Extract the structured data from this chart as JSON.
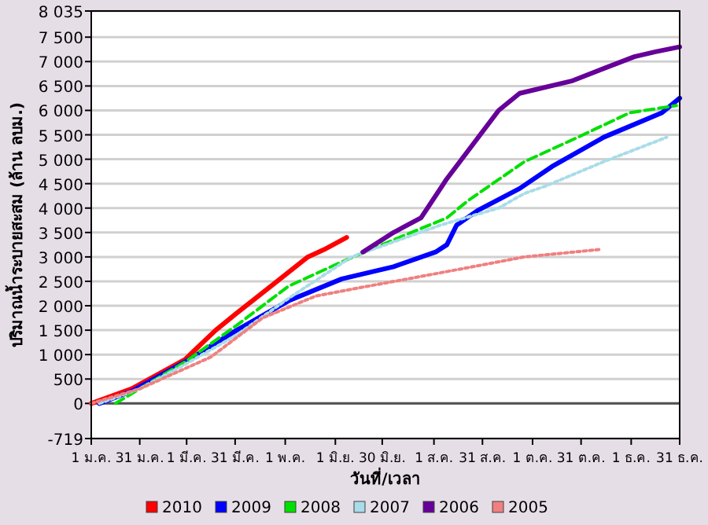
{
  "chart_data": {
    "type": "line",
    "xlabel": "วันที่/เวลา",
    "ylabel": "ปริมาณน้ำระบายสะสม (ล้าน ลบม.)",
    "xlim": [
      "--01-01",
      "--12-31"
    ],
    "xticks": [
      {
        "value": "--01-01",
        "label": "1 ม.ค."
      },
      {
        "value": "--01-31",
        "label": "31 ม.ค."
      },
      {
        "value": "--03-01",
        "label": "1 มี.ค."
      },
      {
        "value": "--03-31",
        "label": "31 มี.ค."
      },
      {
        "value": "--05-01",
        "label": "1 พ.ค."
      },
      {
        "value": "--06-01",
        "label": "1 มิ.ย."
      },
      {
        "value": "--06-30",
        "label": "30 มิ.ย."
      },
      {
        "value": "--08-01",
        "label": "1 ส.ค."
      },
      {
        "value": "--08-31",
        "label": "31 ส.ค."
      },
      {
        "value": "--10-01",
        "label": "1 ต.ค."
      },
      {
        "value": "--10-31",
        "label": "31 ต.ค."
      },
      {
        "value": "--12-01",
        "label": "1 ธ.ค."
      },
      {
        "value": "--12-31",
        "label": "31 ธ.ค."
      }
    ],
    "ylim": [
      -719,
      8035
    ],
    "yticks": [
      {
        "value": -719,
        "label": "-719"
      },
      0,
      500,
      {
        "value": 1000,
        "label": "1 000"
      },
      {
        "value": 1500,
        "label": "1 500"
      },
      {
        "value": 2000,
        "label": "2 000"
      },
      {
        "value": 2500,
        "label": "2 500"
      },
      {
        "value": 3000,
        "label": "3 000"
      },
      {
        "value": 3500,
        "label": "3 500"
      },
      {
        "value": 4000,
        "label": "4 000"
      },
      {
        "value": 4500,
        "label": "4 500"
      },
      {
        "value": 5000,
        "label": "5 000"
      },
      {
        "value": 5500,
        "label": "5 500"
      },
      {
        "value": 6000,
        "label": "6 000"
      },
      {
        "value": 6500,
        "label": "6 500"
      },
      {
        "value": 7000,
        "label": "7 000"
      },
      {
        "value": 7500,
        "label": "7 500"
      },
      {
        "value": 8035,
        "label": "8 035"
      }
    ],
    "grid": "y",
    "legend": "bottom",
    "ref_lines": [
      {
        "axis": "y",
        "value": 0,
        "color": "#505050"
      }
    ],
    "series": [
      {
        "name": "2010",
        "color": "#ff0000",
        "line_style": "solid",
        "x": [
          "--01-01",
          "--01-26",
          "--02-28",
          "--03-19",
          "--04-01",
          "--04-24",
          "--05-15",
          "--05-25",
          "--06-08"
        ],
        "values": [
          0,
          300,
          900,
          1500,
          1850,
          2450,
          3000,
          3150,
          3400
        ]
      },
      {
        "name": "2009",
        "color": "#0000ff",
        "line_style": "solid",
        "x": [
          "--01-06",
          "--01-26",
          "--02-28",
          "--04-01",
          "--05-03",
          "--06-05",
          "--07-07",
          "--08-02",
          "--08-09",
          "--08-15",
          "--08-28",
          "--09-23",
          "--10-13",
          "--11-14",
          "--12-20",
          "--12-31"
        ],
        "values": [
          0,
          250,
          850,
          1500,
          2100,
          2550,
          2800,
          3100,
          3250,
          3650,
          3950,
          4400,
          4850,
          5450,
          5950,
          6250
        ]
      },
      {
        "name": "2008",
        "color": "#00e000",
        "line_style": "dashed",
        "x": [
          "--01-16",
          "--01-31",
          "--02-28",
          "--04-01",
          "--05-03",
          "--06-05",
          "--07-07",
          "--08-09",
          "--08-22",
          "--09-26",
          "--10-29",
          "--11-30",
          "--12-29"
        ],
        "values": [
          0,
          300,
          850,
          1600,
          2400,
          2900,
          3350,
          3800,
          4150,
          4950,
          5450,
          5950,
          6100
        ]
      },
      {
        "name": "2007",
        "color": "#a8dce8",
        "line_style": "dotted",
        "x": [
          "--01-06",
          "--01-31",
          "--02-28",
          "--04-01",
          "--05-03",
          "--06-11",
          "--08-05",
          "--09-10",
          "--09-26",
          "--10-09",
          "--11-14",
          "--12-23"
        ],
        "values": [
          0,
          300,
          800,
          1400,
          2150,
          3000,
          3650,
          4000,
          4300,
          4450,
          4950,
          5450
        ]
      },
      {
        "name": "2006",
        "color": "#660099",
        "line_style": "solid",
        "x": [
          "--06-18",
          "--07-07",
          "--07-24",
          "--08-05",
          "--08-09",
          "--09-10",
          "--09-23",
          "--10-25",
          "--12-03",
          "--12-16",
          "--12-31"
        ],
        "values": [
          3100,
          3500,
          3800,
          4400,
          4600,
          6000,
          6350,
          6600,
          7100,
          7200,
          7300
        ]
      },
      {
        "name": "2005",
        "color": "#f08080",
        "line_style": "dotted",
        "x": [
          "--01-01",
          "--01-31",
          "--03-16",
          "--04-17",
          "--05-20",
          "--06-21",
          "--07-24",
          "--08-25",
          "--09-26",
          "--11-11"
        ],
        "values": [
          0,
          300,
          950,
          1750,
          2200,
          2400,
          2600,
          2800,
          3000,
          3150
        ]
      }
    ]
  }
}
